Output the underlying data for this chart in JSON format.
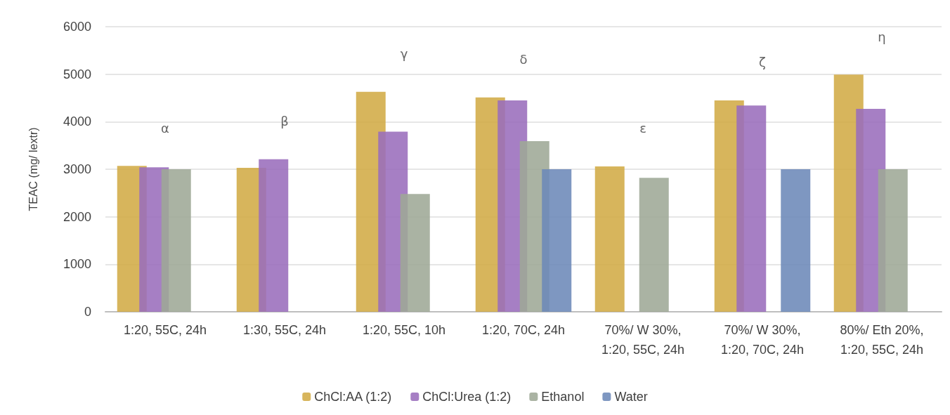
{
  "chart_data": {
    "type": "bar",
    "ylabel": "TEAC (mg/ lextr)",
    "categories": [
      "1:20, 55C, 24h",
      "1:30, 55C, 24h",
      "1:20, 55C, 10h",
      "1:20, 70C, 24h",
      "70%/ W 30%,\n1:20, 55C, 24h",
      "70%/ W 30%,\n1:20, 70C, 24h",
      "80%/ Eth 20%,\n1:20, 55C, 24h"
    ],
    "series": [
      {
        "name": "ChCl:AA (1:2)",
        "color": "#d2ab45",
        "values": [
          3070,
          3030,
          4630,
          4510,
          3060,
          4450,
          4990
        ]
      },
      {
        "name": "ChCl:Urea (1:2)",
        "color": "#9a6dbc",
        "values": [
          3040,
          3210,
          3790,
          4450,
          null,
          4340,
          4270
        ]
      },
      {
        "name": "Ethanol",
        "color": "#9ea896",
        "values": [
          3000,
          null,
          2480,
          3590,
          2820,
          null,
          3000
        ]
      },
      {
        "name": "Water",
        "color": "#6c89b8",
        "values": [
          null,
          null,
          null,
          3000,
          null,
          3000,
          null
        ]
      }
    ],
    "ylim": [
      0,
      6000
    ],
    "yticks": [
      0,
      1000,
      2000,
      3000,
      4000,
      5000,
      6000
    ],
    "grid": "y",
    "legend": "bottom",
    "annotations": [
      "α",
      "β",
      "γ",
      "δ",
      "ε",
      "ζ",
      "η"
    ]
  }
}
